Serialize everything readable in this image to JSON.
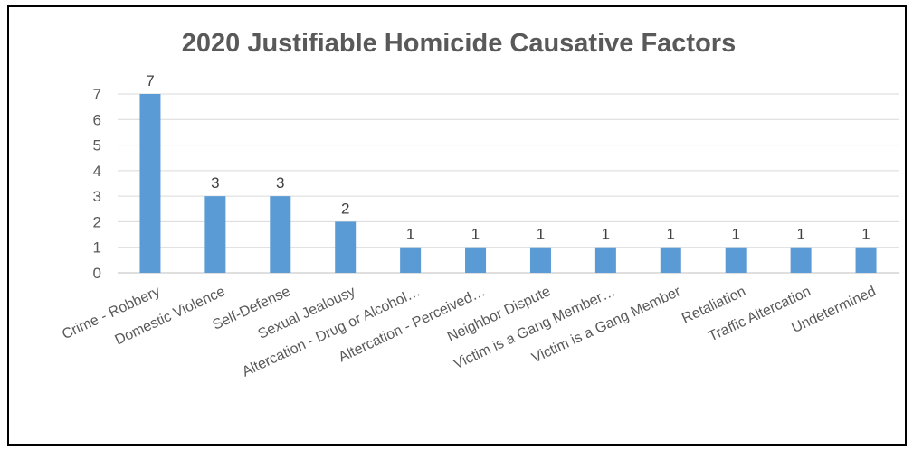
{
  "chart_data": {
    "type": "bar",
    "title": "2020 Justifiable Homicide Causative Factors",
    "xlabel": "",
    "ylabel": "",
    "ylim": [
      0,
      7
    ],
    "yticks": [
      0,
      1,
      2,
      3,
      4,
      5,
      6,
      7
    ],
    "grid": true,
    "legend": "none",
    "bar_color": "#5B9BD5",
    "categories": [
      "Crime - Robbery",
      "Domestic Violence",
      "Self-Defense",
      "Sexual Jealousy",
      "Altercation - Drug or Alcohol…",
      "Altercation - Perceived…",
      "Neighbor Dispute",
      "Victim is a Gang Member…",
      "Victim is a Gang Member",
      "Retaliation",
      "Traffic Altercation",
      "Undetermined"
    ],
    "values": [
      7,
      3,
      3,
      2,
      1,
      1,
      1,
      1,
      1,
      1,
      1,
      1
    ]
  }
}
